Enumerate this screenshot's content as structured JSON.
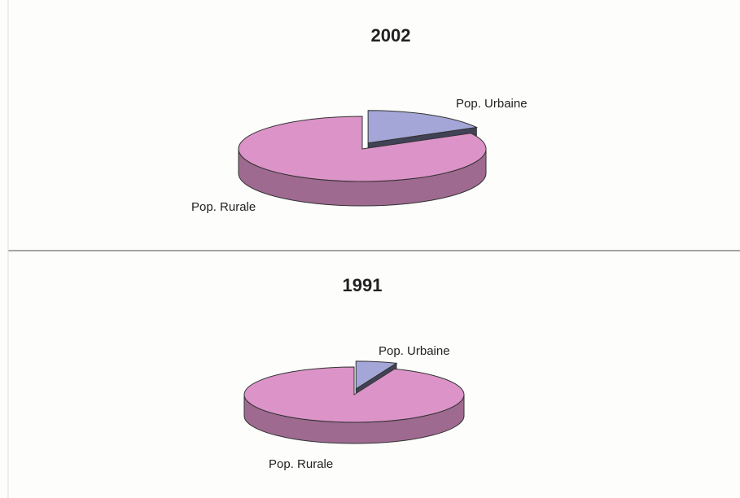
{
  "chart_data": [
    {
      "type": "pie",
      "title": "2002",
      "categories": [
        "Pop. Urbaine",
        "Pop. Rurale"
      ],
      "values": [
        17,
        83
      ],
      "colors": [
        "#a3a6d6",
        "#dc93c8"
      ]
    },
    {
      "type": "pie",
      "title": "1991",
      "categories": [
        "Pop. Urbaine",
        "Pop. Rurale"
      ],
      "values": [
        6,
        94
      ],
      "colors": [
        "#a3a6d6",
        "#dc93c8"
      ]
    }
  ]
}
